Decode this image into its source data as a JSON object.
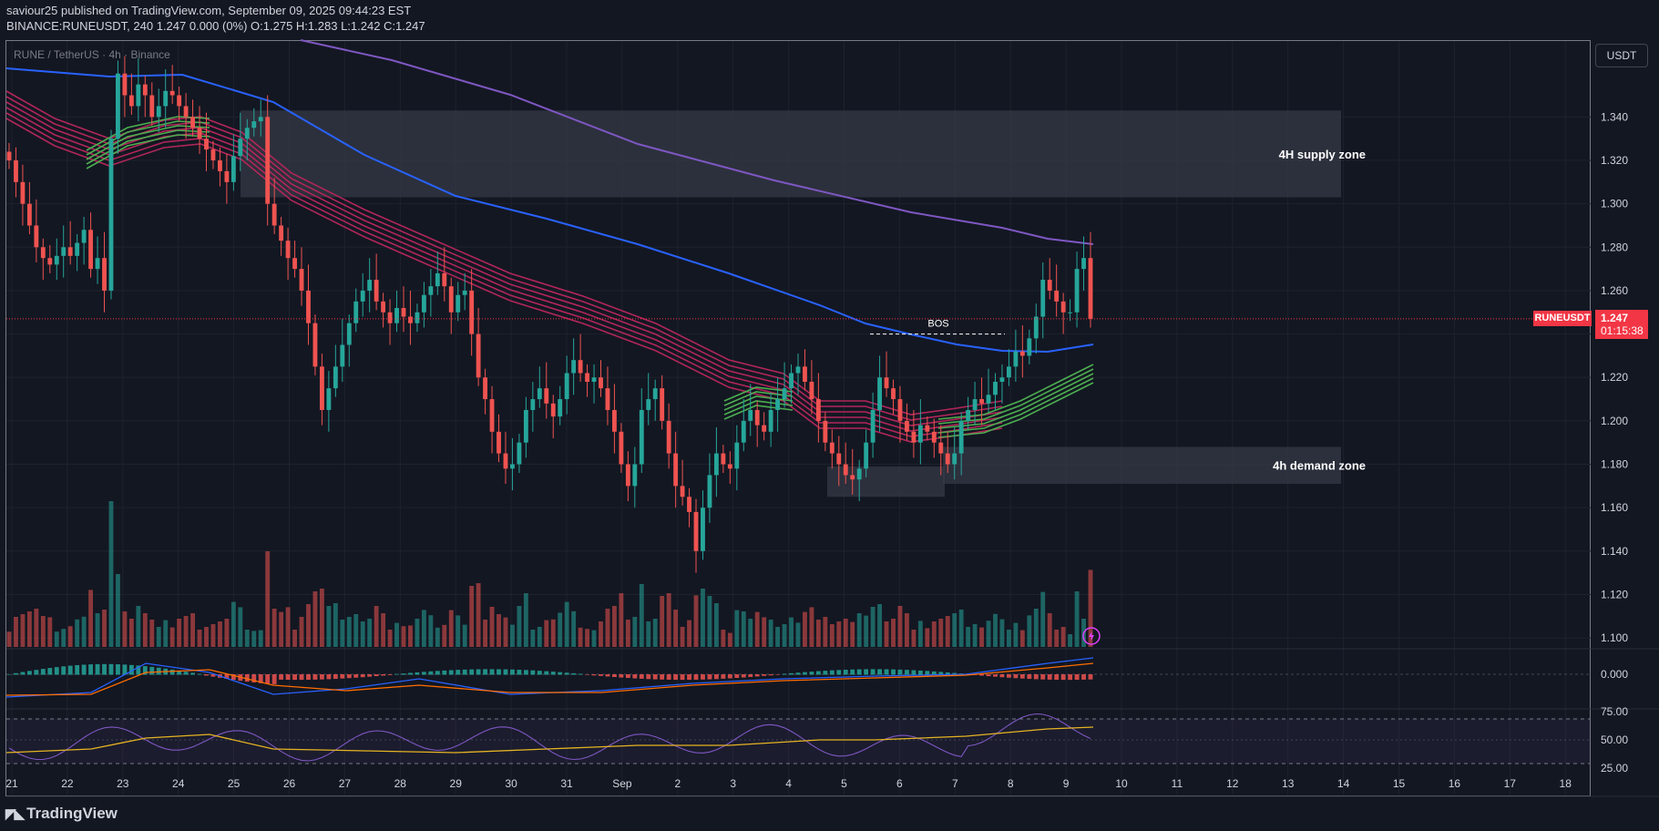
{
  "header": {
    "line1": "saviour25 published on TradingView.com, September 09, 2025 09:44:23 EST",
    "line2": "BINANCE:RUNEUSDT, 240  1.247  0.000 (0%)  O:1.275  H:1.283  L:1.242  C:1.247"
  },
  "symbol_label": "RUNE / TetherUS · 4h · Binance",
  "currency_button": "USDT",
  "last_price": {
    "symbol": "RUNEUSDT",
    "price": "1.247",
    "countdown": "01:15:38"
  },
  "logo": "TradingView",
  "zones": {
    "supply": {
      "label": "4H supply zone",
      "low": 1.303,
      "high": 1.343,
      "from": 24.2,
      "to": 14.9
    },
    "demand": {
      "label": "4h demand zone",
      "low": 1.171,
      "high": 1.188,
      "from": 6.7,
      "to": 14.9
    },
    "demand_small": {
      "low": 1.165,
      "high": 1.179,
      "from": 4.75,
      "to": 6.8
    },
    "bos": {
      "label": "BOS",
      "price": 1.24,
      "from": 5.5,
      "to": 8.0
    }
  },
  "colors": {
    "bull": "#26a69a",
    "bear": "#ef5350",
    "ema_blue": "#2962ff",
    "ema_purple": "#7e57c2",
    "ribbon_red": "#b2265a",
    "ribbon_green": "#4caf50",
    "macd_line": "#2962ff",
    "signal_line": "#ff6d00",
    "rsi_line": "#7e57c2",
    "rsi_ma": "#e6b422"
  },
  "chart_data": {
    "type": "candlestick",
    "x_tick_labels": [
      "21",
      "22",
      "23",
      "24",
      "25",
      "26",
      "27",
      "28",
      "29",
      "30",
      "31",
      "Sep",
      "2",
      "3",
      "4",
      "5",
      "6",
      "7",
      "8",
      "9",
      "10",
      "11",
      "12",
      "13",
      "14",
      "15",
      "16",
      "17",
      "18"
    ],
    "price_axis": {
      "ylim": [
        1.095,
        1.375
      ],
      "ticks": [
        "1.340",
        "1.320",
        "1.300",
        "1.280",
        "1.260",
        "1.240",
        "1.220",
        "1.200",
        "1.180",
        "1.160",
        "1.140",
        "1.120",
        "1.100"
      ]
    },
    "macd_axis": {
      "ticks": [
        "0.000"
      ]
    },
    "rsi_axis": {
      "ticks": [
        "75.00",
        "50.00",
        "25.00"
      ],
      "bands": [
        70,
        30
      ]
    },
    "ohlc_close": [
      1.32,
      1.31,
      1.3,
      1.29,
      1.28,
      1.275,
      1.272,
      1.276,
      1.28,
      1.276,
      1.282,
      1.288,
      1.27,
      1.275,
      1.26,
      1.33,
      1.36,
      1.35,
      1.345,
      1.355,
      1.35,
      1.34,
      1.345,
      1.352,
      1.35,
      1.345,
      1.34,
      1.335,
      1.33,
      1.325,
      1.32,
      1.315,
      1.31,
      1.322,
      1.33,
      1.335,
      1.338,
      1.34,
      1.3,
      1.29,
      1.283,
      1.275,
      1.27,
      1.26,
      1.245,
      1.225,
      1.205,
      1.215,
      1.225,
      1.235,
      1.245,
      1.255,
      1.26,
      1.265,
      1.255,
      1.25,
      1.245,
      1.252,
      1.248,
      1.245,
      1.25,
      1.258,
      1.262,
      1.268,
      1.262,
      1.25,
      1.258,
      1.26,
      1.24,
      1.22,
      1.21,
      1.195,
      1.185,
      1.178,
      1.18,
      1.19,
      1.205,
      1.21,
      1.215,
      1.208,
      1.202,
      1.21,
      1.222,
      1.228,
      1.222,
      1.218,
      1.22,
      1.215,
      1.205,
      1.195,
      1.18,
      1.17,
      1.18,
      1.205,
      1.21,
      1.215,
      1.2,
      1.185,
      1.17,
      1.165,
      1.158,
      1.14,
      1.16,
      1.175,
      1.185,
      1.18,
      1.178,
      1.19,
      1.2,
      1.205,
      1.198,
      1.195,
      1.205,
      1.21,
      1.215,
      1.222,
      1.225,
      1.218,
      1.21,
      1.2,
      1.19,
      1.185,
      1.18,
      1.175,
      1.173,
      1.178,
      1.19,
      1.205,
      1.22,
      1.215,
      1.21,
      1.2,
      1.195,
      1.19,
      1.198,
      1.195,
      1.19,
      1.185,
      1.18,
      1.185,
      1.2,
      1.205,
      1.21,
      1.208,
      1.212,
      1.218,
      1.22,
      1.225,
      1.232,
      1.23,
      1.238,
      1.248,
      1.265,
      1.26,
      1.255,
      1.25,
      1.25,
      1.27,
      1.275,
      1.247
    ],
    "volume_panel": "volume bars colored by candle direction",
    "indicators": [
      "EMA ribbon",
      "EMA 100 (blue)",
      "EMA 200 (purple)",
      "MACD",
      "RSI"
    ]
  }
}
